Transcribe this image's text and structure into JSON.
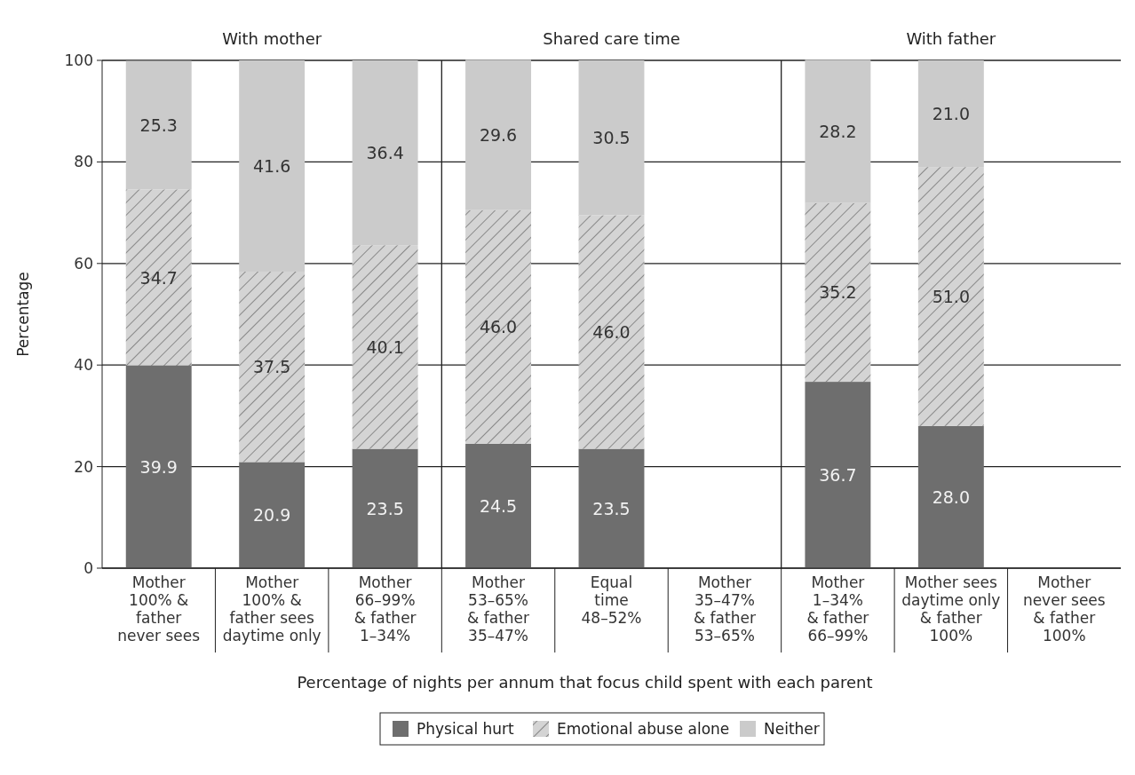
{
  "chart_data": {
    "type": "bar",
    "stacked": true,
    "ylabel": "Percentage",
    "xlabel": "Percentage of nights per annum that focus child spent with each parent",
    "categories": [
      "Mother\n100% &\nfather\nnever sees",
      "Mother\n100% &\nfather sees\ndaytime only",
      "Mother\n66–99%\n& father\n1–34%",
      "Mother\n53–65%\n& father\n35–47%",
      "Equal\ntime\n48–52%",
      "Mother\n35–47%\n& father\n53–65%",
      "Mother\n1–34%\n& father\n66–99%",
      "Mother sees\ndaytime only\n& father\n100%",
      "Mother\nnever sees\n& father\n100%"
    ],
    "series": [
      {
        "name": "Physical hurt",
        "color": "#6e6e6e",
        "values": [
          39.9,
          20.9,
          23.5,
          24.5,
          23.5,
          null,
          36.7,
          28.0,
          null
        ],
        "value_labels": [
          "39.9",
          "20.9",
          "23.5",
          "24.5",
          "23.5",
          null,
          "36.7",
          "28.0",
          null
        ]
      },
      {
        "name": "Emotional abuse alone",
        "color": "#d4d4d4",
        "values": [
          34.7,
          37.5,
          40.1,
          46.0,
          46.0,
          null,
          35.2,
          51.0,
          null
        ],
        "value_labels": [
          "34.7",
          "37.5",
          "40.1",
          "46.0",
          "46.0",
          null,
          "35.2",
          "51.0",
          null
        ]
      },
      {
        "name": "Neither",
        "color": "#cbcbcb",
        "values": [
          25.3,
          41.6,
          36.4,
          29.6,
          30.5,
          null,
          28.2,
          21.0,
          null
        ],
        "value_labels": [
          "25.3",
          "41.6",
          "36.4",
          "29.6",
          "30.5",
          null,
          "28.2",
          "21.0",
          null
        ]
      }
    ],
    "ylim": [
      0,
      100
    ],
    "yticks": [
      0,
      20,
      40,
      60,
      80,
      100
    ],
    "grid": "y",
    "legend": "bottom",
    "annotations": [
      "With mother",
      "Shared care time",
      "With father"
    ]
  }
}
